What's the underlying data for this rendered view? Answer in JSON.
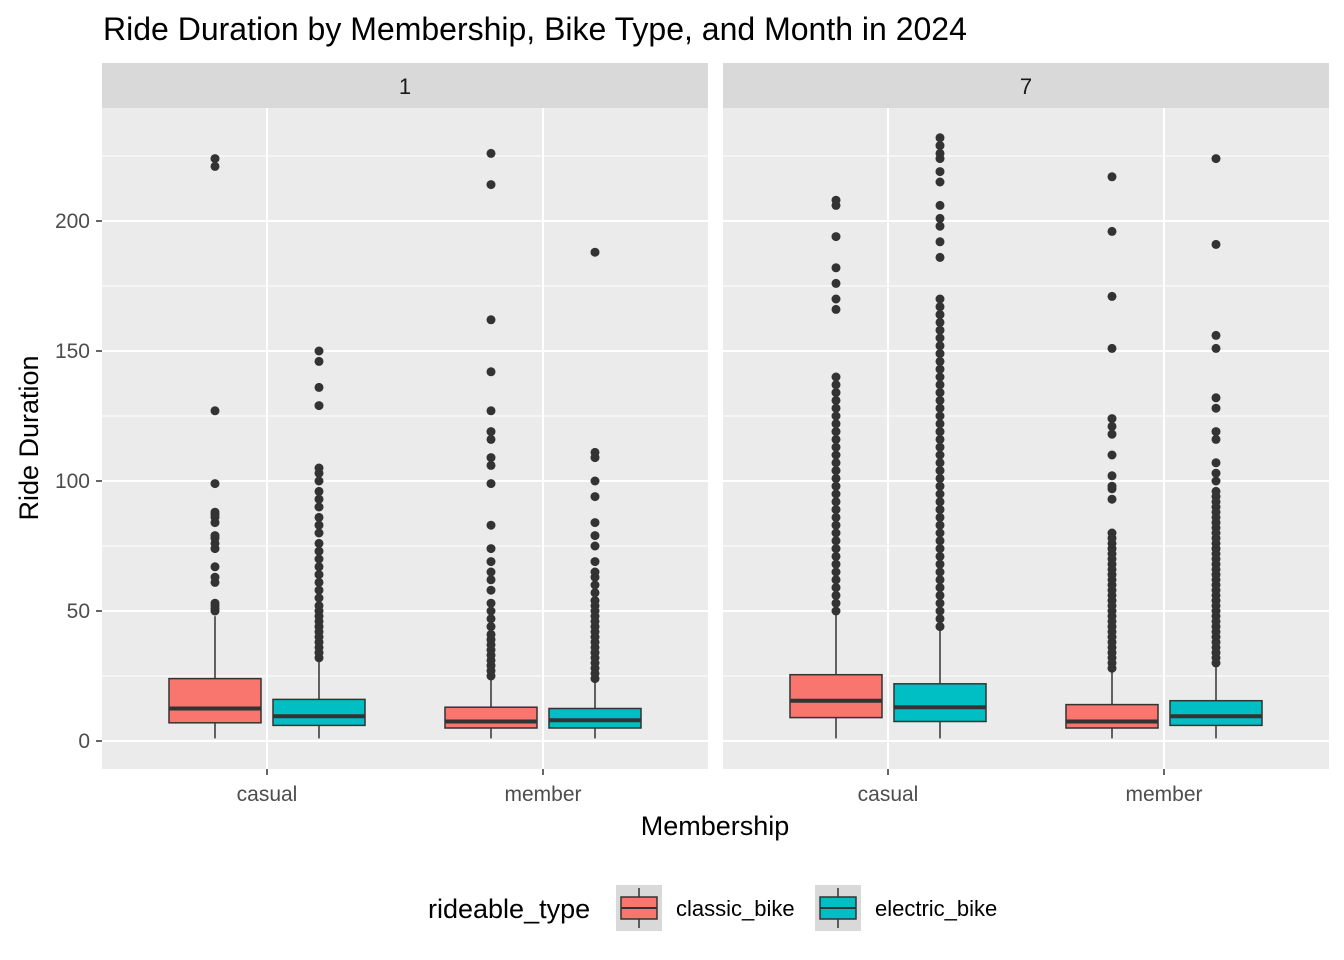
{
  "chart_data": {
    "type": "boxplot",
    "title": "Ride Duration by Membership, Bike Type, and Month in 2024",
    "xlabel": "Membership",
    "ylabel": "Ride Duration",
    "ylim": [
      -10,
      246
    ],
    "y_ticks": [
      0,
      50,
      100,
      150,
      200
    ],
    "categories": [
      "casual",
      "member"
    ],
    "facet_variable": "month",
    "facets": [
      {
        "label": "1",
        "groups": [
          {
            "membership": "casual",
            "rideable_type": "classic_bike",
            "min": 1,
            "q1": 7,
            "median": 12.5,
            "q3": 24,
            "whisker_high": 48,
            "outliers": [
              50,
              51,
              52,
              53,
              61,
              63,
              67,
              74,
              76,
              78,
              79,
              84,
              86,
              87,
              88,
              99,
              127,
              221,
              224
            ]
          },
          {
            "membership": "casual",
            "rideable_type": "electric_bike",
            "min": 1,
            "q1": 6,
            "median": 9.5,
            "q3": 16,
            "whisker_high": 31,
            "outliers": [
              32,
              34,
              36,
              38,
              40,
              42,
              44,
              46,
              48,
              50,
              52,
              55,
              58,
              61,
              64,
              67,
              70,
              73,
              76,
              80,
              83,
              86,
              90,
              93,
              96,
              100,
              103,
              105,
              129,
              136,
              146,
              150
            ]
          },
          {
            "membership": "member",
            "rideable_type": "classic_bike",
            "min": 1,
            "q1": 5,
            "median": 7.5,
            "q3": 13,
            "whisker_high": 24,
            "outliers": [
              25,
              27,
              29,
              31,
              33,
              35,
              37,
              39,
              41,
              44,
              47,
              50,
              53,
              58,
              62,
              65,
              69,
              74,
              83,
              99,
              106,
              109,
              116,
              119,
              127,
              142,
              162,
              214,
              226
            ]
          },
          {
            "membership": "member",
            "rideable_type": "electric_bike",
            "min": 1,
            "q1": 5,
            "median": 8,
            "q3": 12.5,
            "whisker_high": 23,
            "outliers": [
              24,
              26,
              28,
              30,
              32,
              34,
              36,
              38,
              40,
              42,
              44,
              46,
              48,
              50,
              52,
              54,
              57,
              60,
              63,
              65,
              69,
              75,
              79,
              84,
              94,
              100,
              109,
              111,
              188
            ]
          }
        ]
      },
      {
        "label": "7",
        "groups": [
          {
            "membership": "casual",
            "rideable_type": "classic_bike",
            "min": 1,
            "q1": 9,
            "median": 15.5,
            "q3": 25.5,
            "whisker_high": 49,
            "outliers": [
              50,
              53,
              56,
              59,
              62,
              65,
              68,
              71,
              74,
              77,
              80,
              83,
              86,
              89,
              92,
              95,
              98,
              101,
              104,
              107,
              110,
              113,
              116,
              119,
              122,
              125,
              128,
              131,
              134,
              137,
              140,
              166,
              170,
              176,
              182,
              194,
              206,
              208
            ]
          },
          {
            "membership": "casual",
            "rideable_type": "electric_bike",
            "min": 1,
            "q1": 7.5,
            "median": 13,
            "q3": 22,
            "whisker_high": 43,
            "outliers": [
              44,
              47,
              50,
              53,
              56,
              59,
              62,
              65,
              68,
              71,
              74,
              77,
              80,
              83,
              86,
              89,
              92,
              95,
              98,
              101,
              104,
              107,
              110,
              113,
              116,
              119,
              122,
              125,
              128,
              131,
              134,
              137,
              140,
              143,
              146,
              149,
              152,
              155,
              158,
              161,
              164,
              167,
              170,
              186,
              192,
              198,
              201,
              206,
              215,
              219,
              224,
              226,
              229,
              232
            ]
          },
          {
            "membership": "member",
            "rideable_type": "classic_bike",
            "min": 1,
            "q1": 5,
            "median": 7.5,
            "q3": 14,
            "whisker_high": 27,
            "outliers": [
              28,
              30,
              32,
              34,
              36,
              38,
              40,
              42,
              44,
              46,
              48,
              50,
              52,
              54,
              56,
              58,
              60,
              62,
              64,
              66,
              68,
              70,
              72,
              74,
              76,
              78,
              80,
              93,
              97,
              98,
              102,
              110,
              118,
              121,
              124,
              151,
              171,
              196,
              217
            ]
          },
          {
            "membership": "member",
            "rideable_type": "electric_bike",
            "min": 1,
            "q1": 6,
            "median": 9.5,
            "q3": 15.5,
            "whisker_high": 29,
            "outliers": [
              30,
              32,
              34,
              36,
              38,
              40,
              42,
              44,
              46,
              48,
              50,
              52,
              54,
              56,
              58,
              60,
              62,
              64,
              66,
              68,
              70,
              72,
              74,
              76,
              78,
              80,
              82,
              84,
              86,
              88,
              90,
              92,
              94,
              96,
              100,
              103,
              107,
              116,
              119,
              128,
              132,
              151,
              156,
              191,
              224
            ]
          }
        ]
      }
    ],
    "legend": {
      "title": "rideable_type",
      "position": "bottom",
      "entries": [
        {
          "label": "classic_bike",
          "color": "#F8766D"
        },
        {
          "label": "electric_bike",
          "color": "#00BFC4"
        }
      ]
    },
    "colors": {
      "panel_background": "#EBEBEB",
      "strip_background": "#D9D9D9",
      "grid": "#FFFFFF",
      "box_outline": "#333333",
      "outlier": "#333333"
    }
  }
}
